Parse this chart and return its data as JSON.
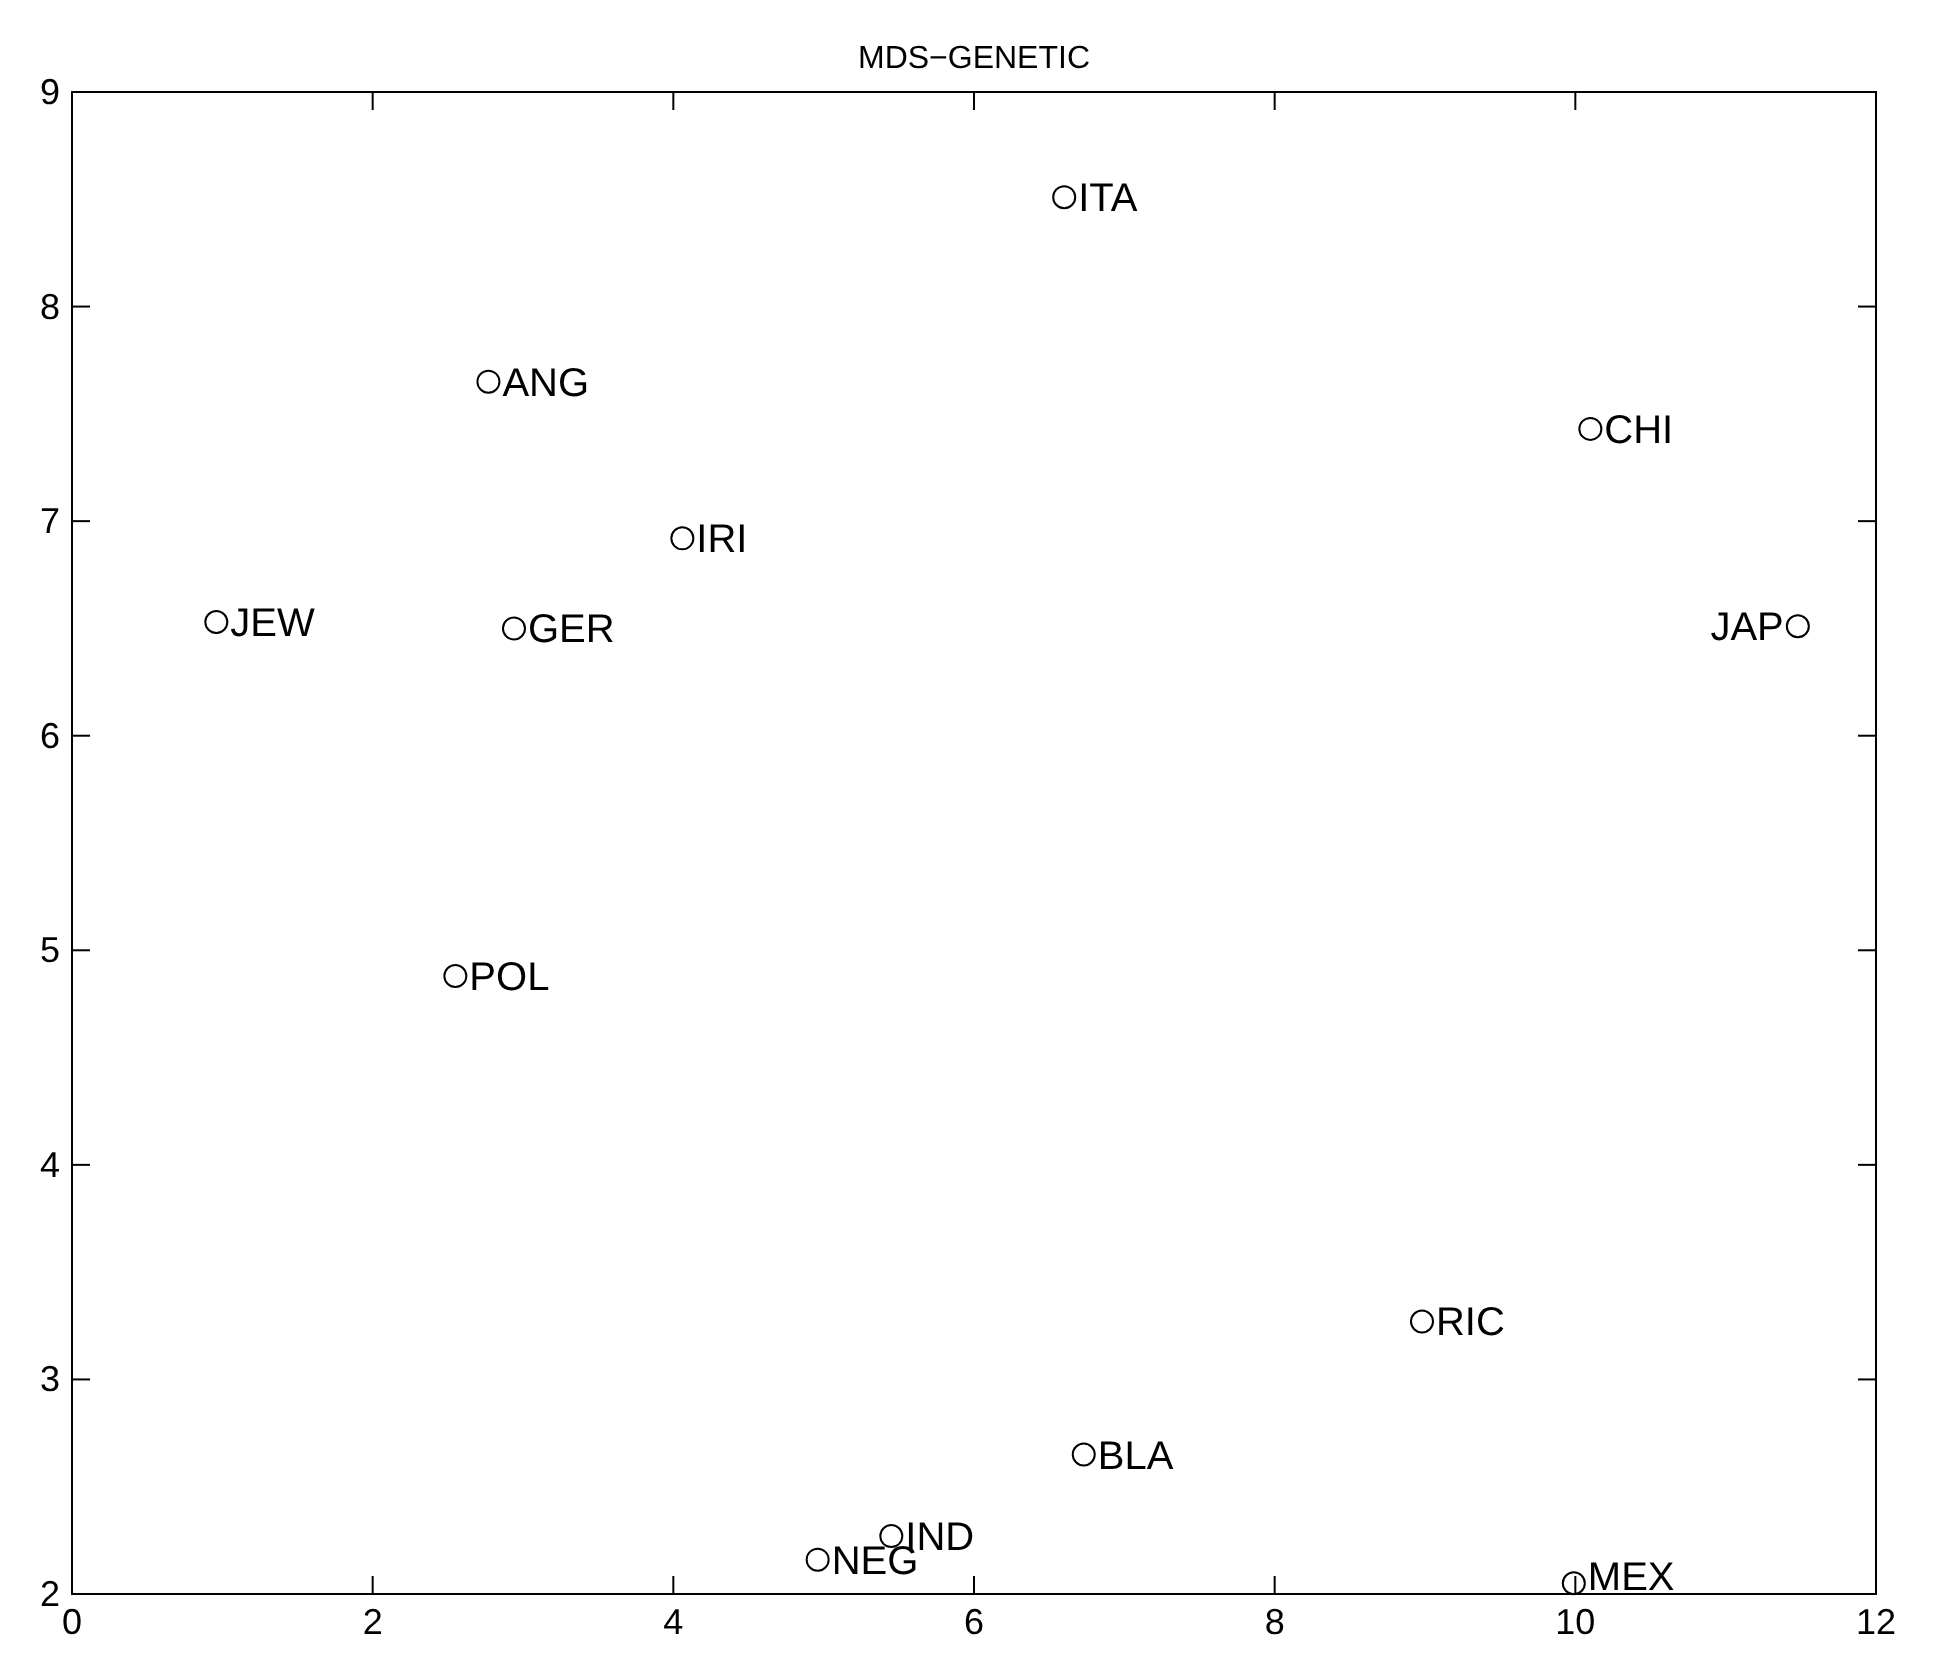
{
  "chart_data": {
    "type": "scatter",
    "title": "MDS−GENETIC",
    "x": [
      6.6,
      2.77,
      10.1,
      4.06,
      0.96,
      2.94,
      11.48,
      2.55,
      8.98,
      6.73,
      5.45,
      4.96,
      9.99
    ],
    "series": [
      {
        "color": "#000000",
        "values": [
          8.51,
          7.65,
          7.43,
          6.92,
          6.53,
          6.5,
          6.51,
          4.88,
          3.27,
          2.65,
          2.27,
          2.16,
          2.05
        ]
      }
    ],
    "annotations": [
      {
        "text": "ITA",
        "x": 6.6,
        "y": 8.51
      },
      {
        "text": "ANG",
        "x": 2.77,
        "y": 7.65
      },
      {
        "text": "CHI",
        "x": 10.1,
        "y": 7.43
      },
      {
        "text": "IRI",
        "x": 4.06,
        "y": 6.92
      },
      {
        "text": "JEW",
        "x": 0.96,
        "y": 6.53
      },
      {
        "text": "GER",
        "x": 2.94,
        "y": 6.5
      },
      {
        "text": "JAP",
        "x": 11.48,
        "y": 6.51
      },
      {
        "text": "POL",
        "x": 2.55,
        "y": 4.88
      },
      {
        "text": "RIC",
        "x": 8.98,
        "y": 3.27
      },
      {
        "text": "BLA",
        "x": 6.73,
        "y": 2.65
      },
      {
        "text": "IND",
        "x": 5.45,
        "y": 2.27
      },
      {
        "text": "NEG",
        "x": 4.96,
        "y": 2.16
      },
      {
        "text": "MEX",
        "x": 9.99,
        "y": 2.05
      }
    ],
    "xlim": [
      0,
      12
    ],
    "xticks": [
      0,
      2,
      4,
      6,
      8,
      10,
      12
    ],
    "ylim": [
      2,
      9
    ],
    "yticks": [
      2,
      3,
      4,
      5,
      6,
      7,
      8,
      9
    ],
    "marker": "circle",
    "grid": false
  }
}
